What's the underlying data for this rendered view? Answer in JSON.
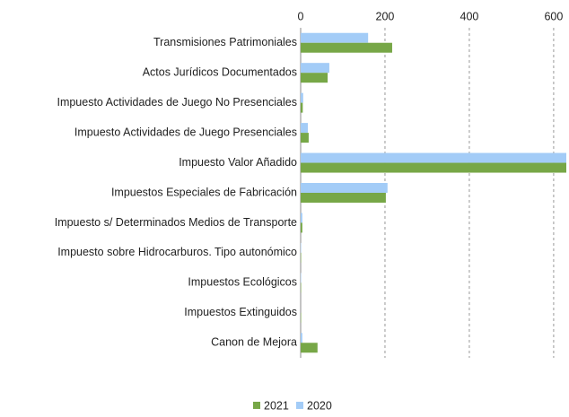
{
  "chart_data": {
    "type": "hbar",
    "categories": [
      "Transmisiones Patrimoniales",
      "Actos Jurídicos Documentados",
      "Impuesto Actividades de Juego No Presenciales",
      "Impuesto Actividades de Juego Presenciales",
      "Impuesto Valor Añadido",
      "Impuestos Especiales de Fabricación",
      "Impuesto s/ Determinados Medios de Transporte",
      "Impuesto sobre Hidrocarburos. Tipo autonómico",
      "Impuestos Ecológicos",
      "Impuestos Extinguidos",
      "Canon de Mejora"
    ],
    "series": [
      {
        "name": "2021",
        "color": "#77a747",
        "values": [
          217,
          64,
          5,
          19,
          630,
          202,
          4,
          1,
          1,
          1,
          40
        ]
      },
      {
        "name": "2020",
        "color": "#a3ccf7",
        "values": [
          160,
          68,
          6,
          17,
          630,
          206,
          4,
          1,
          1,
          0,
          4
        ]
      }
    ],
    "xlim": [
      0,
      630
    ],
    "xticks": [
      0,
      200,
      400,
      600
    ],
    "grid": true,
    "legend": "bottom"
  }
}
